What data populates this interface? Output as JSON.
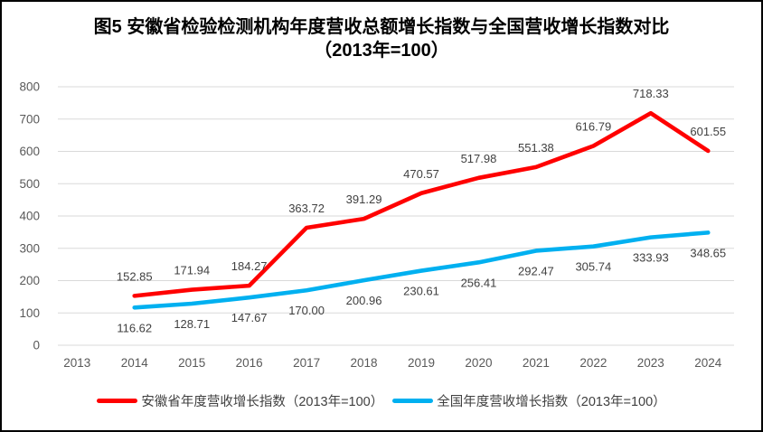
{
  "title": {
    "line1": "图5  安徽省检验检测机构年度营收总额增长指数与全国营收增长指数对比",
    "line2": "（2013年=100）"
  },
  "legend": [
    {
      "key": "anhui",
      "label": "安徽省年度营收增长指数（2013年=100）",
      "color": "#FF0000"
    },
    {
      "key": "national",
      "label": "全国年度营收增长指数（2013年=100）",
      "color": "#00B0F0"
    }
  ],
  "chart_data": {
    "type": "line",
    "title": "图5 安徽省检验检测机构年度营收总额增长指数与全国营收增长指数对比（2013年=100）",
    "xlabel": "",
    "ylabel": "",
    "x_ticks": [
      "2013",
      "2014",
      "2015",
      "2016",
      "2017",
      "2018",
      "2019",
      "2020",
      "2021",
      "2022",
      "2023",
      "2024"
    ],
    "y_ticks": [
      0,
      100,
      200,
      300,
      400,
      500,
      600,
      700,
      800
    ],
    "ylim": [
      0,
      800
    ],
    "grid": true,
    "legend_position": "bottom",
    "series": [
      {
        "key": "anhui",
        "name": "安徽省年度营收增长指数（2013年=100）",
        "color": "#FF0000",
        "label_position": "above",
        "x": [
          2014,
          2015,
          2016,
          2017,
          2018,
          2019,
          2020,
          2021,
          2022,
          2023,
          2024
        ],
        "values": [
          152.85,
          171.94,
          184.27,
          363.72,
          391.29,
          470.57,
          517.98,
          551.38,
          616.79,
          718.33,
          601.55
        ]
      },
      {
        "key": "national",
        "name": "全国年度营收增长指数（2013年=100）",
        "color": "#00B0F0",
        "label_position": "below",
        "x": [
          2014,
          2015,
          2016,
          2017,
          2018,
          2019,
          2020,
          2021,
          2022,
          2023,
          2024
        ],
        "values": [
          116.62,
          128.71,
          147.67,
          170.0,
          200.96,
          230.61,
          256.41,
          292.47,
          305.74,
          333.93,
          348.65
        ]
      }
    ],
    "style": {
      "grid_color": "#D9D9D9",
      "axis_text_color": "#595959",
      "data_label_color": "#404040",
      "title_color": "#000000"
    }
  }
}
